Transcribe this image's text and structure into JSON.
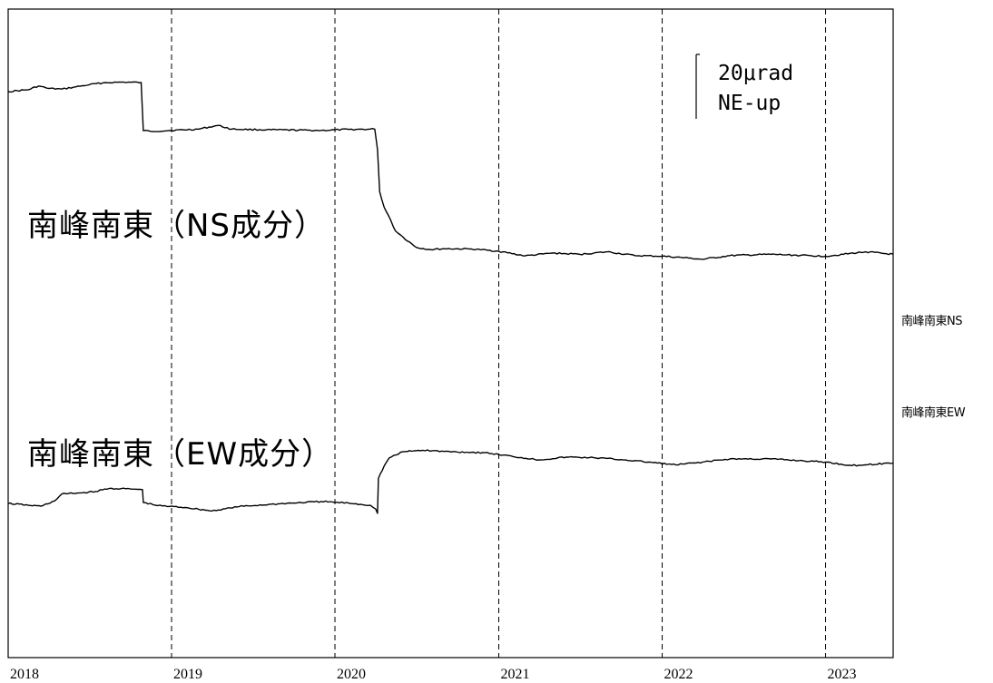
{
  "chart_data": {
    "type": "line",
    "x_axis": {
      "kind": "date",
      "range": [
        "2018-01-01",
        "2023-06-01"
      ],
      "tick_labels": [
        "2018",
        "2019",
        "2020",
        "2021",
        "2022",
        "2023"
      ],
      "gridlines": "dashed vertical at each year"
    },
    "legend": "none",
    "annotations": {
      "scale_value": "20μrad",
      "scale_direction": "NE-up"
    },
    "series": [
      {
        "name": "南峰南東NS",
        "plot_label": "南峰南東（NS成分）",
        "color": "#000000",
        "y_unit": "μrad",
        "points": [
          [
            "2018-01-01",
            0
          ],
          [
            "2018-02-15",
            0.6
          ],
          [
            "2018-03-10",
            1.8
          ],
          [
            "2018-04-01",
            1.0
          ],
          [
            "2018-05-01",
            0.8
          ],
          [
            "2018-06-01",
            1.5
          ],
          [
            "2018-07-01",
            2.2
          ],
          [
            "2018-08-01",
            2.8
          ],
          [
            "2018-09-01",
            3.0
          ],
          [
            "2018-10-01",
            3.0
          ],
          [
            "2018-10-25",
            2.9
          ],
          [
            "2018-10-30",
            -12.5
          ],
          [
            "2018-11-15",
            -12.7
          ],
          [
            "2019-01-01",
            -12.4
          ],
          [
            "2019-03-01",
            -12.0
          ],
          [
            "2019-04-15",
            -10.8
          ],
          [
            "2019-05-15",
            -12.0
          ],
          [
            "2019-08-01",
            -12.2
          ],
          [
            "2019-12-01",
            -12.4
          ],
          [
            "2020-02-01",
            -12.1
          ],
          [
            "2020-03-30",
            -12.0
          ],
          [
            "2020-04-05",
            -18.5
          ],
          [
            "2020-04-10",
            -32.0
          ],
          [
            "2020-04-20",
            -37.0
          ],
          [
            "2020-05-01",
            -40.0
          ],
          [
            "2020-05-15",
            -44.5
          ],
          [
            "2020-06-01",
            -46.5
          ],
          [
            "2020-07-01",
            -49.8
          ],
          [
            "2020-08-01",
            -50.5
          ],
          [
            "2020-09-01",
            -50.2
          ],
          [
            "2020-11-01",
            -50.3
          ],
          [
            "2021-01-01",
            -51.0
          ],
          [
            "2021-03-01",
            -52.5
          ],
          [
            "2021-05-01",
            -51.6
          ],
          [
            "2021-07-01",
            -52.0
          ],
          [
            "2021-09-01",
            -51.2
          ],
          [
            "2021-11-01",
            -52.4
          ],
          [
            "2022-01-01",
            -52.6
          ],
          [
            "2022-03-01",
            -53.2
          ],
          [
            "2022-04-01",
            -53.6
          ],
          [
            "2022-06-01",
            -52.4
          ],
          [
            "2022-09-01",
            -52.0
          ],
          [
            "2023-01-01",
            -52.6
          ],
          [
            "2023-04-01",
            -51.2
          ],
          [
            "2023-06-01",
            -52.0
          ]
        ]
      },
      {
        "name": "南峰南東EW",
        "plot_label": "南峰南東（EW成分）",
        "color": "#000000",
        "y_unit": "μrad",
        "points": [
          [
            "2018-01-01",
            0
          ],
          [
            "2018-02-15",
            -0.6
          ],
          [
            "2018-03-15",
            -0.9
          ],
          [
            "2018-04-15",
            0.8
          ],
          [
            "2018-05-01",
            3.0
          ],
          [
            "2018-06-15",
            3.4
          ],
          [
            "2018-07-15",
            3.8
          ],
          [
            "2018-08-15",
            4.8
          ],
          [
            "2018-10-01",
            4.6
          ],
          [
            "2018-10-28",
            4.4
          ],
          [
            "2018-10-30",
            0.3
          ],
          [
            "2018-12-01",
            -0.7
          ],
          [
            "2019-02-01",
            -1.3
          ],
          [
            "2019-04-01",
            -2.4
          ],
          [
            "2019-06-01",
            -1.0
          ],
          [
            "2019-09-01",
            -0.1
          ],
          [
            "2019-12-01",
            0.6
          ],
          [
            "2020-02-01",
            0.1
          ],
          [
            "2020-03-20",
            -0.6
          ],
          [
            "2020-04-01",
            -1.8
          ],
          [
            "2020-04-05",
            -3.2
          ],
          [
            "2020-04-07",
            8.0
          ],
          [
            "2020-04-20",
            12.0
          ],
          [
            "2020-05-01",
            14.5
          ],
          [
            "2020-06-01",
            16.5
          ],
          [
            "2020-07-15",
            17.0
          ],
          [
            "2020-09-01",
            16.6
          ],
          [
            "2020-12-01",
            16.2
          ],
          [
            "2021-02-01",
            15.0
          ],
          [
            "2021-04-01",
            13.9
          ],
          [
            "2021-06-01",
            14.8
          ],
          [
            "2021-08-01",
            14.6
          ],
          [
            "2021-10-01",
            14.0
          ],
          [
            "2021-12-01",
            13.2
          ],
          [
            "2022-02-01",
            12.3
          ],
          [
            "2022-04-01",
            13.2
          ],
          [
            "2022-06-01",
            14.2
          ],
          [
            "2022-09-01",
            14.2
          ],
          [
            "2023-01-01",
            13.2
          ],
          [
            "2023-03-01",
            12.1
          ],
          [
            "2023-06-01",
            12.9
          ]
        ]
      }
    ]
  }
}
